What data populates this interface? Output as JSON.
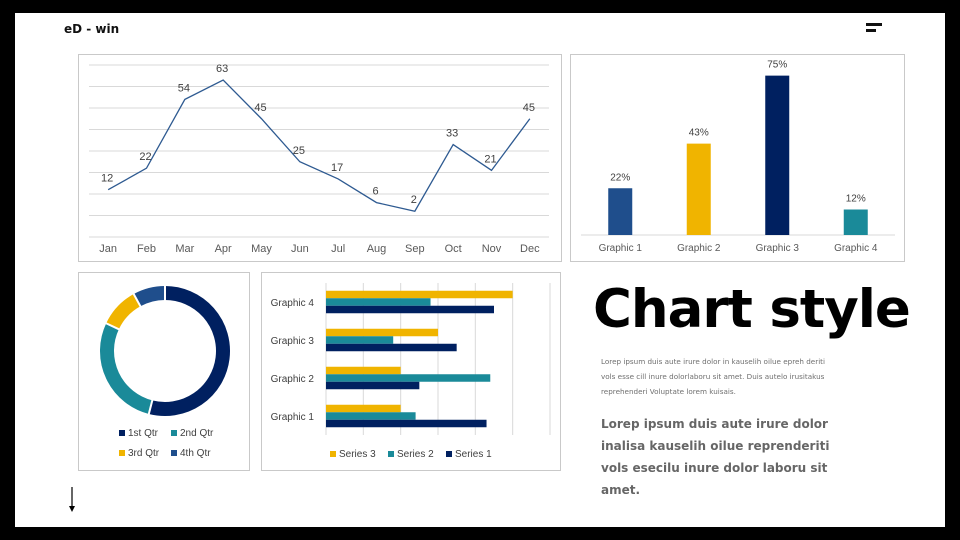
{
  "header": {
    "brand": "eD - win",
    "menu_icon": "menu-icon"
  },
  "colors": {
    "navy": "#002060",
    "teal": "#1a8a99",
    "gold": "#f0b400",
    "blue": "#1f4e8c",
    "line": "#2e5a91"
  },
  "line_chart": {
    "chart_data": {
      "type": "line",
      "categories": [
        "Jan",
        "Feb",
        "Mar",
        "Apr",
        "May",
        "Jun",
        "Jul",
        "Aug",
        "Sep",
        "Oct",
        "Nov",
        "Dec"
      ],
      "values": [
        12,
        22,
        54,
        63,
        45,
        25,
        17,
        6,
        2,
        33,
        21,
        45
      ],
      "ylim": [
        -10,
        70
      ],
      "grid": true
    },
    "labels": {
      "values": [
        "12",
        "22",
        "54",
        "63",
        "45",
        "25",
        "17",
        "6",
        "2",
        "33",
        "21",
        "45"
      ]
    }
  },
  "bar_chart": {
    "chart_data": {
      "type": "bar",
      "categories": [
        "Graphic 1",
        "Graphic 2",
        "Graphic 3",
        "Graphic 4"
      ],
      "values": [
        22,
        43,
        75,
        12
      ],
      "colors": [
        "#1f4e8c",
        "#f0b400",
        "#002060",
        "#1a8a99"
      ],
      "ylim": [
        0,
        80
      ]
    },
    "labels": {
      "values": [
        "22%",
        "43%",
        "75%",
        "12%"
      ]
    }
  },
  "donut_chart": {
    "chart_data": {
      "type": "pie",
      "categories": [
        "1st Qtr",
        "2nd Qtr",
        "3rd Qtr",
        "4th Qtr"
      ],
      "values": [
        54,
        28,
        10,
        8
      ],
      "colors": [
        "#002060",
        "#1a8a99",
        "#f0b400",
        "#1f4e8c"
      ],
      "legend": "bottom"
    }
  },
  "hbar_chart": {
    "chart_data": {
      "type": "bar",
      "orientation": "horizontal",
      "categories": [
        "Graphic 1",
        "Graphic 2",
        "Graphic 3",
        "Graphic 4"
      ],
      "series": [
        {
          "name": "Series 3",
          "values": [
            2,
            2,
            3,
            5
          ],
          "color": "#f0b400"
        },
        {
          "name": "Series 2",
          "values": [
            2.4,
            4.4,
            1.8,
            2.8
          ],
          "color": "#1a8a99"
        },
        {
          "name": "Series 1",
          "values": [
            4.3,
            2.5,
            3.5,
            4.5
          ],
          "color": "#002060"
        }
      ],
      "xlim": [
        0,
        6
      ],
      "legend": "bottom"
    }
  },
  "text": {
    "title": "Chart style",
    "small_paragraph": "Lorep  ipsum duis aute irure dolor in kauselih oilue epreh deriti vols esse cill inure dolorlaboru sit amet. Duis autelo irusitakus reprehenderi Voluptate lorem kuisais.",
    "large_paragraph": "Lorep  ipsum duis aute irure dolor inalisa kauselih oilue reprenderiti vols esecilu inure dolor laboru sit amet."
  },
  "footer": {
    "arrow_icon": "down-arrow-icon"
  }
}
